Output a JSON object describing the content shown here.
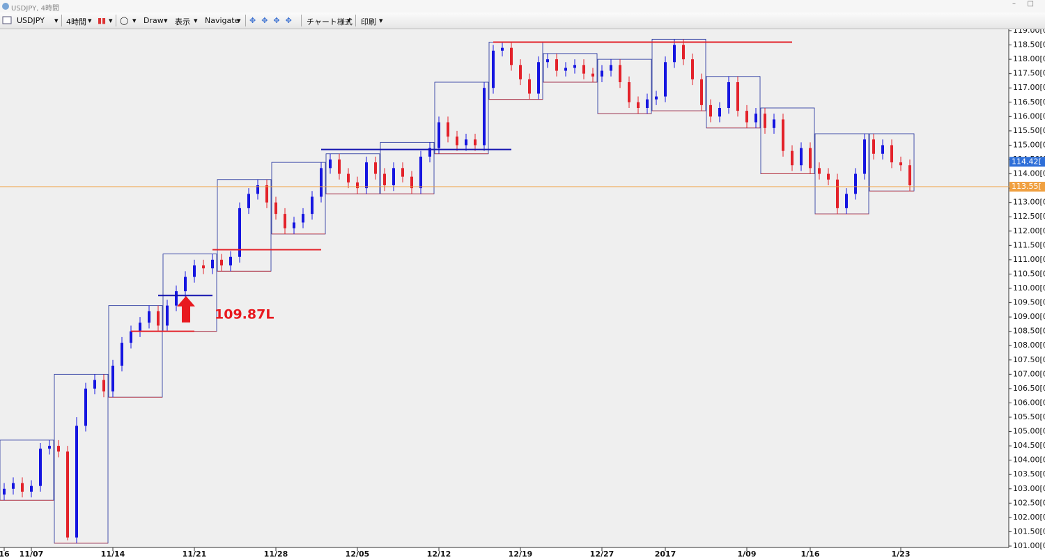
{
  "window": {
    "title": "USDJPY, 4時間"
  },
  "toolbar": {
    "symbol": "USDJPY",
    "timeframe": "4時間",
    "draw": "Draw",
    "view": "表示",
    "navigate": "Navigate",
    "chart_style": "チャート様式",
    "print": "印刷"
  },
  "chart_data": {
    "type": "candlestick",
    "annotation": "109.87L",
    "up_color": "#1515e0",
    "down_color": "#e3222a",
    "box_color": "#1a2a9a",
    "box_low_color": "#c0282e",
    "open": [
      102.8,
      103.0,
      103.2,
      102.9,
      103.1,
      104.4,
      104.5,
      104.3,
      101.3,
      105.2,
      106.5,
      106.8,
      106.4,
      107.3,
      108.1,
      108.5,
      108.8,
      109.2,
      108.7,
      109.4,
      109.9,
      110.4,
      110.8,
      110.7,
      111.0,
      110.8,
      111.1,
      112.8,
      113.3,
      113.6,
      113.0,
      112.6,
      112.1,
      112.3,
      112.6,
      113.2,
      114.2,
      114.5,
      114.0,
      113.7,
      113.5,
      114.4,
      114.0,
      113.6,
      114.2,
      113.9,
      113.5,
      114.6,
      114.9,
      115.8,
      115.3,
      115.0,
      115.2,
      115.0,
      117.0,
      118.3,
      118.4,
      117.8,
      117.3,
      116.8,
      117.9,
      118.0,
      117.6,
      117.7,
      117.8,
      117.5,
      117.4,
      117.6,
      117.8,
      117.2,
      116.5,
      116.3,
      116.6,
      116.7,
      117.9,
      118.5,
      118.0,
      117.3,
      116.4,
      116.0,
      116.3,
      117.2,
      116.2,
      115.8,
      116.1,
      115.6,
      115.9,
      114.8,
      114.3,
      114.9,
      114.2,
      114.0,
      113.8,
      112.8,
      113.3,
      114.0,
      115.2,
      114.7,
      115.0,
      114.4,
      114.3
    ],
    "high": [
      103.2,
      103.4,
      103.4,
      103.3,
      104.6,
      104.7,
      104.7,
      104.5,
      105.5,
      106.7,
      107.0,
      107.0,
      107.5,
      108.3,
      108.7,
      109.0,
      109.4,
      109.4,
      109.6,
      110.1,
      110.6,
      111.0,
      111.0,
      111.2,
      111.2,
      111.3,
      113.0,
      113.5,
      113.8,
      113.8,
      113.2,
      112.8,
      112.5,
      112.8,
      113.4,
      114.4,
      114.7,
      114.7,
      114.2,
      113.9,
      114.6,
      114.6,
      114.2,
      114.4,
      114.4,
      114.1,
      114.8,
      115.1,
      116.0,
      116.0,
      115.5,
      115.4,
      115.4,
      117.2,
      118.5,
      118.6,
      118.6,
      118.0,
      117.5,
      118.1,
      118.2,
      118.2,
      117.9,
      118.0,
      118.0,
      117.7,
      117.8,
      118.0,
      118.0,
      117.4,
      116.7,
      116.8,
      116.9,
      118.1,
      118.7,
      118.7,
      118.2,
      117.5,
      116.6,
      116.5,
      117.4,
      117.4,
      116.4,
      116.3,
      116.3,
      116.1,
      116.1,
      115.0,
      115.1,
      115.1,
      114.4,
      114.2,
      114.0,
      113.5,
      114.2,
      115.4,
      115.4,
      115.2,
      115.2,
      114.6,
      114.5
    ],
    "low": [
      102.6,
      102.8,
      102.7,
      102.7,
      102.9,
      104.2,
      104.1,
      101.2,
      101.1,
      105.0,
      106.3,
      106.2,
      106.2,
      107.1,
      107.9,
      108.3,
      108.6,
      108.5,
      108.5,
      109.2,
      109.7,
      110.2,
      110.5,
      110.5,
      110.6,
      110.6,
      110.9,
      112.6,
      113.1,
      112.8,
      112.4,
      111.9,
      111.9,
      112.1,
      112.4,
      113.0,
      114.0,
      113.8,
      113.5,
      113.3,
      113.3,
      113.8,
      113.4,
      113.4,
      113.7,
      113.3,
      113.3,
      114.4,
      114.7,
      115.1,
      114.8,
      114.8,
      114.8,
      114.8,
      116.8,
      118.1,
      117.6,
      117.1,
      116.6,
      116.6,
      117.7,
      117.4,
      117.4,
      117.5,
      117.3,
      117.2,
      117.2,
      117.4,
      117.0,
      116.3,
      116.1,
      116.1,
      116.4,
      116.5,
      117.7,
      117.8,
      117.1,
      116.2,
      115.8,
      115.8,
      116.1,
      116.0,
      115.6,
      115.6,
      115.4,
      115.4,
      114.6,
      114.1,
      114.1,
      114.0,
      113.8,
      113.6,
      112.6,
      112.6,
      113.1,
      113.8,
      114.5,
      114.5,
      114.2,
      114.1,
      113.4
    ],
    "close": [
      103.0,
      103.2,
      102.9,
      103.1,
      104.4,
      104.5,
      104.3,
      101.3,
      105.2,
      106.5,
      106.8,
      106.4,
      107.3,
      108.1,
      108.5,
      108.8,
      109.2,
      108.7,
      109.4,
      109.9,
      110.4,
      110.8,
      110.7,
      111.0,
      110.8,
      111.1,
      112.8,
      113.3,
      113.6,
      113.0,
      112.6,
      112.1,
      112.3,
      112.6,
      113.2,
      114.2,
      114.5,
      114.0,
      113.7,
      113.5,
      114.4,
      114.0,
      113.6,
      114.2,
      113.9,
      113.5,
      114.6,
      114.9,
      115.8,
      115.3,
      115.0,
      115.2,
      115.0,
      117.0,
      118.3,
      118.4,
      117.8,
      117.3,
      116.8,
      117.9,
      118.0,
      117.6,
      117.7,
      117.8,
      117.5,
      117.4,
      117.6,
      117.8,
      117.2,
      116.5,
      116.3,
      116.6,
      116.7,
      117.9,
      118.5,
      118.0,
      117.3,
      116.4,
      116.0,
      116.3,
      117.2,
      116.2,
      115.8,
      116.1,
      115.6,
      115.9,
      114.8,
      114.3,
      114.9,
      114.2,
      114.0,
      113.8,
      112.8,
      113.3,
      114.0,
      115.2,
      114.7,
      115.0,
      114.4,
      114.3,
      113.6
    ],
    "ylim": [
      101,
      119
    ],
    "yticks": [
      {
        "value": 101.0,
        "label": "101.00[0"
      },
      {
        "value": 101.5,
        "label": "101.50[0"
      },
      {
        "value": 102.0,
        "label": "102.00[0"
      },
      {
        "value": 102.5,
        "label": "102.50[0"
      },
      {
        "value": 103.0,
        "label": "103.00[0"
      },
      {
        "value": 103.5,
        "label": "103.50[0"
      },
      {
        "value": 104.0,
        "label": "104.00[0"
      },
      {
        "value": 104.5,
        "label": "104.50[0"
      },
      {
        "value": 105.0,
        "label": "105.00[0"
      },
      {
        "value": 105.5,
        "label": "105.50[0"
      },
      {
        "value": 106.0,
        "label": "106.00[0"
      },
      {
        "value": 106.5,
        "label": "106.50[0"
      },
      {
        "value": 107.0,
        "label": "107.00[0"
      },
      {
        "value": 107.5,
        "label": "107.50[0"
      },
      {
        "value": 108.0,
        "label": "108.00[0"
      },
      {
        "value": 108.5,
        "label": "108.50[0"
      },
      {
        "value": 109.0,
        "label": "109.00[0"
      },
      {
        "value": 109.5,
        "label": "109.50[0"
      },
      {
        "value": 110.0,
        "label": "110.00[0"
      },
      {
        "value": 110.5,
        "label": "110.50[0"
      },
      {
        "value": 111.0,
        "label": "111.00[0"
      },
      {
        "value": 111.5,
        "label": "111.50[0"
      },
      {
        "value": 112.0,
        "label": "112.00[0"
      },
      {
        "value": 112.5,
        "label": "112.50[0"
      },
      {
        "value": 113.0,
        "label": "113.00[0"
      },
      {
        "value": 113.5,
        "label": "113.50[0"
      },
      {
        "value": 114.0,
        "label": "114.00[0"
      },
      {
        "value": 114.5,
        "label": "114.50[0"
      },
      {
        "value": 115.0,
        "label": "115.00[0"
      },
      {
        "value": 115.5,
        "label": "115.50[0"
      },
      {
        "value": 116.0,
        "label": "116.00[0"
      },
      {
        "value": 116.5,
        "label": "116.50[0"
      },
      {
        "value": 117.0,
        "label": "117.00[0"
      },
      {
        "value": 117.5,
        "label": "117.50[0"
      },
      {
        "value": 118.0,
        "label": "118.00[0"
      },
      {
        "value": 118.5,
        "label": "118.50[0"
      },
      {
        "value": 119.0,
        "label": "119.00[0"
      }
    ],
    "xticks": [
      {
        "value": 0,
        "label": "16"
      },
      {
        "value": 3,
        "label": "11/07"
      },
      {
        "value": 12,
        "label": "11/14"
      },
      {
        "value": 21,
        "label": "11/21"
      },
      {
        "value": 30,
        "label": "11/28"
      },
      {
        "value": 39,
        "label": "12/05"
      },
      {
        "value": 48,
        "label": "12/12"
      },
      {
        "value": 57,
        "label": "12/19"
      },
      {
        "value": 66,
        "label": "12/27"
      },
      {
        "value": 73,
        "label": "2017"
      },
      {
        "value": 82,
        "label": "1/09"
      },
      {
        "value": 89,
        "label": "1/16"
      },
      {
        "value": 99,
        "label": "1/23"
      }
    ],
    "lines": [
      {
        "value": 118.6,
        "from": 54,
        "to": 87,
        "color": "#e3222a"
      },
      {
        "value": 114.85,
        "from": 35,
        "to": 56,
        "color": "#1515b0"
      },
      {
        "value": 111.35,
        "from": 23,
        "to": 35,
        "color": "#e3222a"
      },
      {
        "value": 109.75,
        "from": 17,
        "to": 23,
        "color": "#1515b0"
      },
      {
        "value": 108.5,
        "from": 14,
        "to": 21,
        "color": "#e3222a"
      }
    ],
    "price_tags": [
      {
        "value": 114.42,
        "label": "114.42[",
        "color": "#2e6fd8",
        "line": false
      },
      {
        "value": 113.55,
        "label": "113.55[",
        "color": "#f0a040",
        "line": true
      }
    ]
  }
}
